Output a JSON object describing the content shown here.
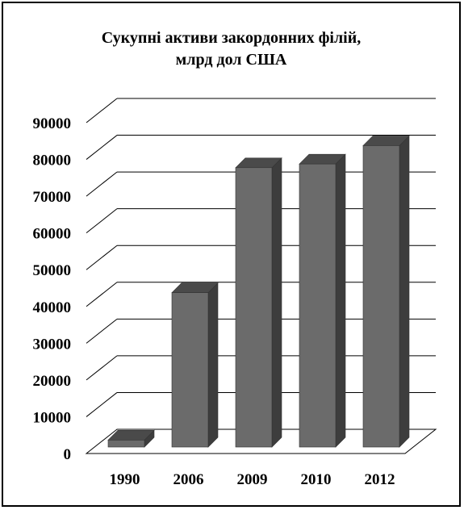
{
  "chart_data": {
    "type": "bar",
    "title": [
      "Сукупні активи закордонних філій,",
      "млрд дол США"
    ],
    "categories": [
      "1990",
      "2006",
      "2009",
      "2010",
      "2012"
    ],
    "values": [
      1900,
      42000,
      76000,
      77000,
      82000
    ],
    "ylim": [
      0,
      90000
    ],
    "yticks": [
      "0",
      "10000",
      "20000",
      "30000",
      "40000",
      "50000",
      "60000",
      "70000",
      "80000",
      "90000"
    ],
    "grid": true,
    "legend": "none",
    "colors": {
      "bar_front": "#6b6b6b",
      "bar_top": "#4a4a4a",
      "bar_side": "#3d3d3d",
      "grid": "#000000"
    }
  }
}
